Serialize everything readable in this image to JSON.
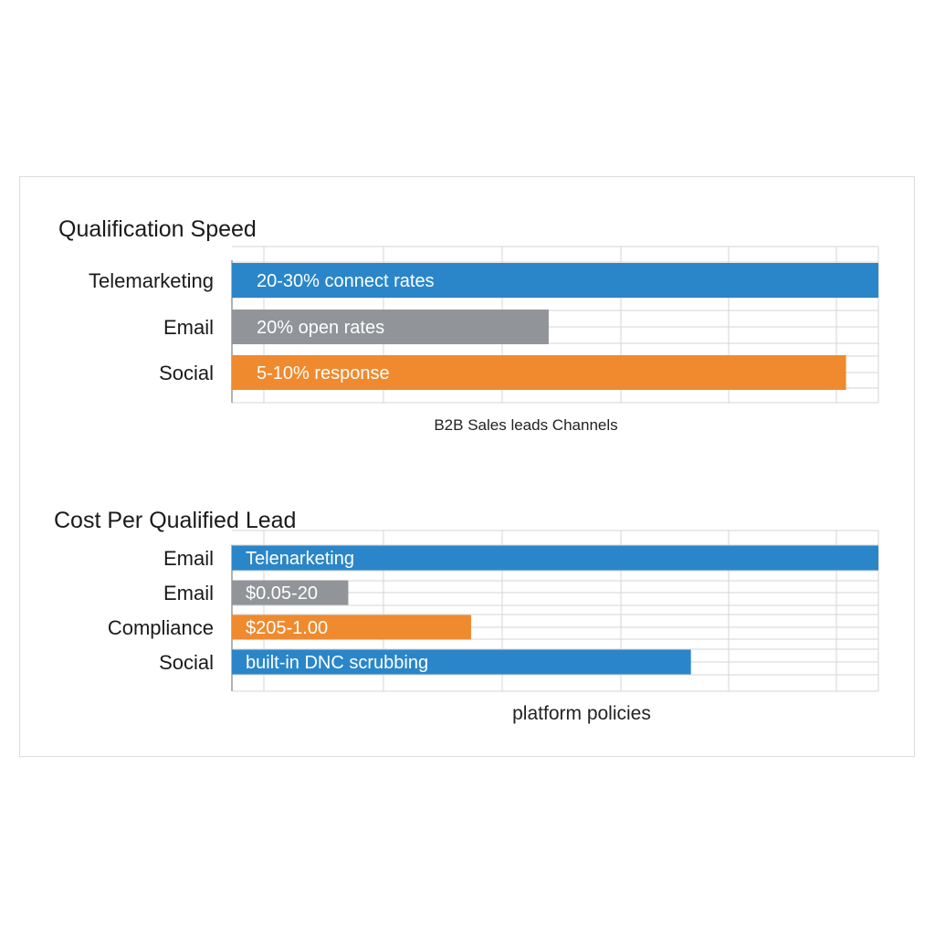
{
  "chart_data": [
    {
      "type": "bar",
      "orientation": "horizontal",
      "title": "Qualification Speed",
      "xlabel": "B2B Sales leads Channels",
      "ylabel": "",
      "xlim": [
        0,
        100
      ],
      "grid": true,
      "categories": [
        "Telemarketing",
        "Email",
        "Social"
      ],
      "values": [
        100,
        49,
        95
      ],
      "bar_labels": [
        "20-30% connect rates",
        "20% open rates",
        "5-10% response"
      ],
      "colors": [
        "#2a86c9",
        "#919499",
        "#ef8a2e"
      ]
    },
    {
      "type": "bar",
      "orientation": "horizontal",
      "title": "Cost Per Qualified Lead",
      "xlabel": "platform policies",
      "ylabel": "",
      "xlim": [
        0,
        100
      ],
      "grid": true,
      "categories": [
        "Email",
        "Email",
        "Compliance",
        "Social"
      ],
      "values": [
        100,
        18,
        37,
        71
      ],
      "bar_labels": [
        "Telenarketing",
        "$0.05-20",
        "$205-1.00",
        "built-in DNC scrubbing"
      ],
      "colors": [
        "#2a86c9",
        "#919499",
        "#ef8a2e",
        "#2a86c9"
      ]
    }
  ]
}
